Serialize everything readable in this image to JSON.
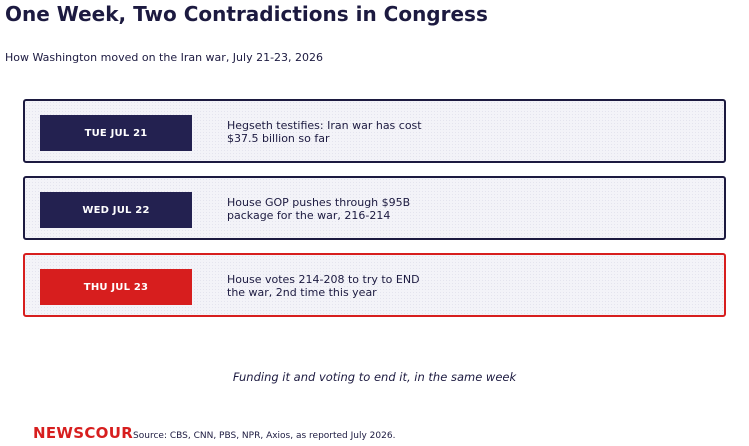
{
  "header": {
    "title": "One Week, Two Contradictions in Congress",
    "subtitle": "How Washington moved on the Iran war, July 21-23, 2026"
  },
  "timeline": [
    {
      "date": "TUE JUL 21",
      "text": "Hegseth testifies: Iran war has cost $37.5 billion so far",
      "highlight": false
    },
    {
      "date": "WED JUL 22",
      "text": "House GOP pushes through $95B package for the war, 216-214",
      "highlight": false
    },
    {
      "date": "THU JUL 23",
      "text": "House votes 214-208 to try to END the war, 2nd time this year",
      "highlight": true
    }
  ],
  "tagline": "Funding it and voting to end it, in the same week",
  "footer": {
    "logo": "NEWSCOUR",
    "source": "Source: CBS, CNN, PBS, NPR, Axios, as reported July 2026."
  },
  "colors": {
    "navy": "#1c1a40",
    "badge_navy": "#232150",
    "accent_red": "#d71e1e",
    "card_bg": "#f3f3f8"
  }
}
